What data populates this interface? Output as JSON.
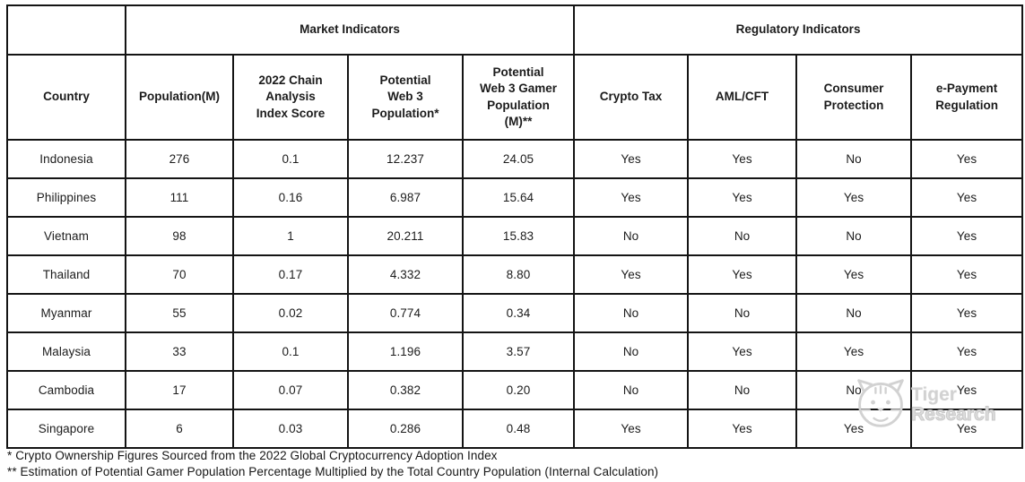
{
  "table": {
    "group_headers": {
      "corner": "",
      "market": "Market Indicators",
      "regulatory": "Regulatory Indicators"
    },
    "columns": [
      "Country",
      "Population(M)",
      "2022 Chain\nAnalysis\nIndex Score",
      "Potential\nWeb 3\nPopulation*",
      "Potential\nWeb 3 Gamer\nPopulation\n(M)**",
      "Crypto Tax",
      "AML/CFT",
      "Consumer\nProtection",
      "e-Payment\nRegulation"
    ],
    "rows": [
      [
        "Indonesia",
        "276",
        "0.1",
        "12.237",
        "24.05",
        "Yes",
        "Yes",
        "No",
        "Yes"
      ],
      [
        "Philippines",
        "111",
        "0.16",
        "6.987",
        "15.64",
        "Yes",
        "Yes",
        "Yes",
        "Yes"
      ],
      [
        "Vietnam",
        "98",
        "1",
        "20.211",
        "15.83",
        "No",
        "No",
        "No",
        "Yes"
      ],
      [
        "Thailand",
        "70",
        "0.17",
        "4.332",
        "8.80",
        "Yes",
        "Yes",
        "Yes",
        "Yes"
      ],
      [
        "Myanmar",
        "55",
        "0.02",
        "0.774",
        "0.34",
        "No",
        "No",
        "No",
        "Yes"
      ],
      [
        "Malaysia",
        "33",
        "0.1",
        "1.196",
        "3.57",
        "No",
        "Yes",
        "Yes",
        "Yes"
      ],
      [
        "Cambodia",
        "17",
        "0.07",
        "0.382",
        "0.20",
        "No",
        "No",
        "No",
        "Yes"
      ],
      [
        "Singapore",
        "6",
        "0.03",
        "0.286",
        "0.48",
        "Yes",
        "Yes",
        "Yes",
        "Yes"
      ]
    ]
  },
  "footnotes": [
    "* Crypto Ownership Figures Sourced from the 2022 Global Cryptocurrency Adoption Index",
    "** Estimation of Potential Gamer Population Percentage Multiplied by the Total Country Population (Internal Calculation)"
  ],
  "watermark": {
    "line1": "Tiger",
    "line2": "Research",
    "logo": "tiger-face-icon"
  },
  "colors": {
    "border": "#141414",
    "text": "#1c1c1c",
    "watermark": "#d2d2d2",
    "background": "#ffffff"
  }
}
